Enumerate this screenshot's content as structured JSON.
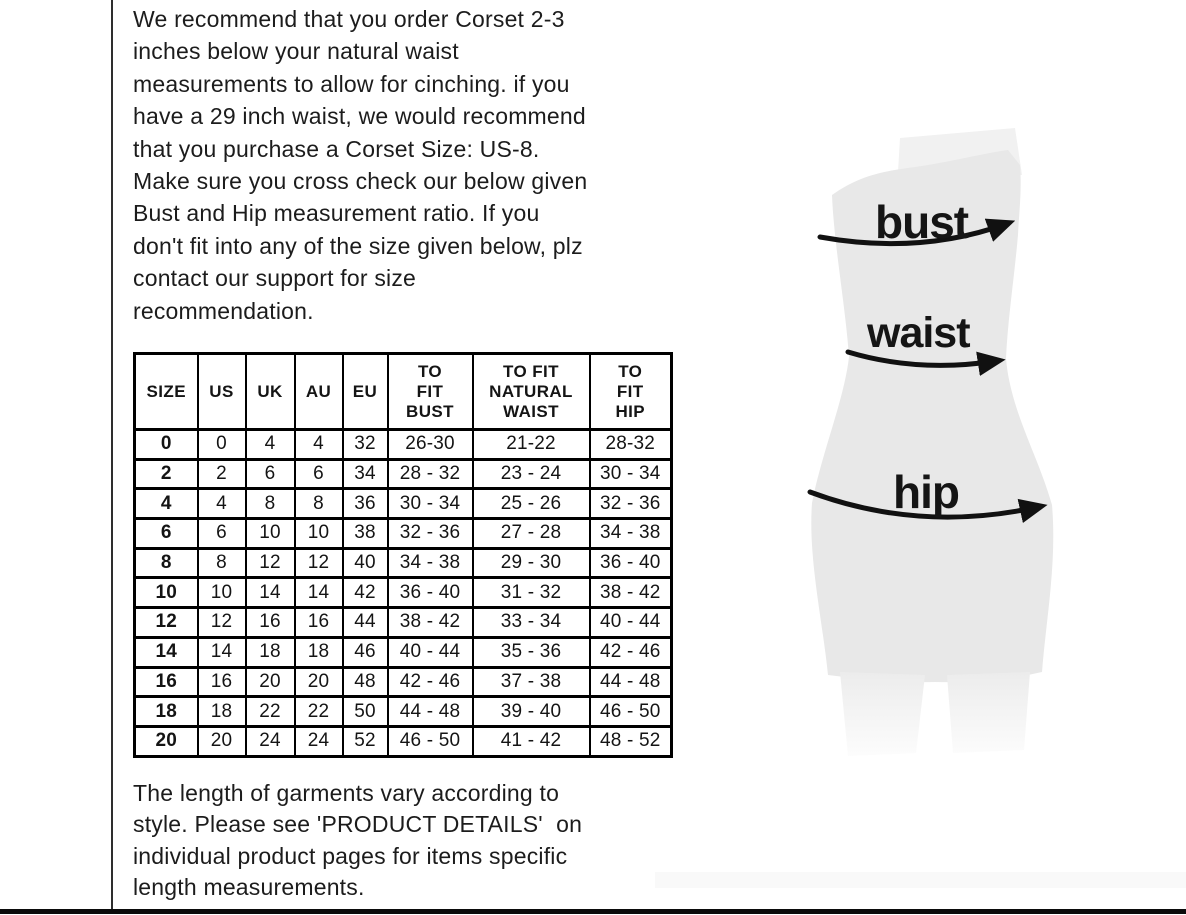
{
  "intro": {
    "lines": [
      "We recommend that you order Corset 2-3",
      "inches below your natural waist",
      "measurements to allow for cinching. if you",
      "have a 29 inch waist, we would recommend",
      "that you purchase a Corset Size: US-8.",
      "Make sure you cross check our below given",
      "Bust and Hip measurement ratio. If you",
      "don't fit into any of the size given below, plz",
      "contact our support for size",
      "recommendation."
    ]
  },
  "size_table": {
    "headers": [
      {
        "id": "size",
        "label": "SIZE",
        "lines": [
          "SIZE"
        ]
      },
      {
        "id": "us",
        "label": "US",
        "lines": [
          "US"
        ]
      },
      {
        "id": "uk",
        "label": "UK",
        "lines": [
          "UK"
        ]
      },
      {
        "id": "au",
        "label": "AU",
        "lines": [
          "AU"
        ]
      },
      {
        "id": "eu",
        "label": "EU",
        "lines": [
          "EU"
        ]
      },
      {
        "id": "to-fit-bust",
        "label": "TO FIT BUST",
        "lines": [
          "TO",
          "FIT",
          "BUST"
        ]
      },
      {
        "id": "to-fit-natural-waist",
        "label": "TO FIT NATURAL WAIST",
        "lines": [
          "TO FIT",
          "NATURAL",
          "WAIST"
        ]
      },
      {
        "id": "to-fit-hip",
        "label": "TO FIT HIP",
        "lines": [
          "TO",
          "FIT",
          "HIP"
        ]
      }
    ],
    "rows": [
      [
        "0",
        "0",
        "4",
        "4",
        "32",
        "26-30",
        "21-22",
        "28-32"
      ],
      [
        "2",
        "2",
        "6",
        "6",
        "34",
        "28 - 32",
        "23 - 24",
        "30 - 34"
      ],
      [
        "4",
        "4",
        "8",
        "8",
        "36",
        "30 - 34",
        "25 - 26",
        "32 - 36"
      ],
      [
        "6",
        "6",
        "10",
        "10",
        "38",
        "32 - 36",
        "27 - 28",
        "34 - 38"
      ],
      [
        "8",
        "8",
        "12",
        "12",
        "40",
        "34 - 38",
        "29 - 30",
        "36 - 40"
      ],
      [
        "10",
        "10",
        "14",
        "14",
        "42",
        "36 - 40",
        "31 - 32",
        "38 - 42"
      ],
      [
        "12",
        "12",
        "16",
        "16",
        "44",
        "38 - 42",
        "33 - 34",
        "40 - 44"
      ],
      [
        "14",
        "14",
        "18",
        "18",
        "46",
        "40 - 44",
        "35 - 36",
        "42 - 46"
      ],
      [
        "16",
        "16",
        "20",
        "20",
        "48",
        "42 - 46",
        "37 - 38",
        "44 - 48"
      ],
      [
        "18",
        "18",
        "22",
        "22",
        "50",
        "44 - 48",
        "39 - 40",
        "46 - 50"
      ],
      [
        "20",
        "20",
        "24",
        "24",
        "52",
        "46 - 50",
        "41 - 42",
        "48 - 52"
      ]
    ]
  },
  "footer": {
    "lines": [
      "The length of garments vary according to",
      "style. Please see 'PRODUCT DETAILS'  on",
      "individual product pages for items specific",
      "length measurements."
    ]
  },
  "figure": {
    "bust_label": "bust",
    "waist_label": "waist",
    "hip_label": "hip"
  },
  "colors": {
    "text": "#1a1a1a",
    "table_border": "#000000",
    "mannequin_body": "#e8e8e8",
    "mannequin_panel": "#f1f1f1",
    "arrow": "#111111"
  }
}
